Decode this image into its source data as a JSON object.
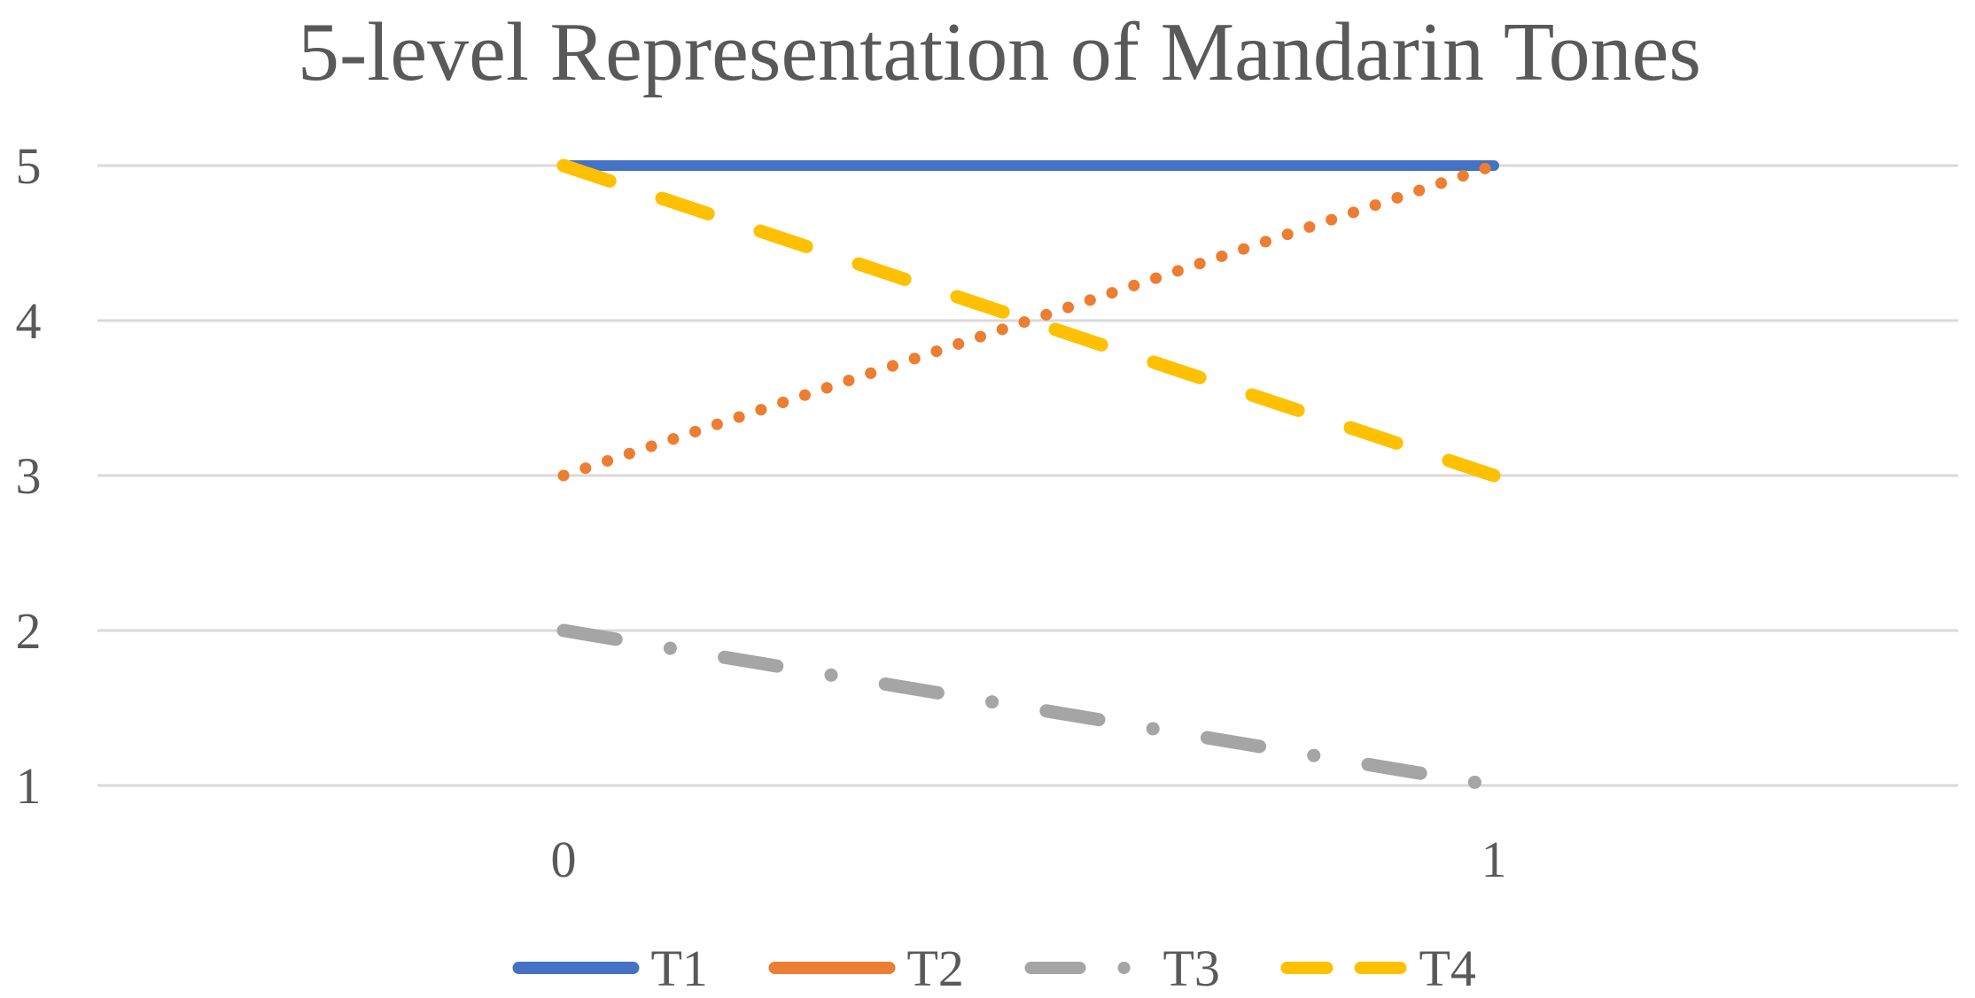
{
  "chart_data": {
    "type": "line",
    "title": "5-level Representation of Mandarin Tones",
    "xlabel": "",
    "ylabel": "",
    "categories": [
      "0",
      "1"
    ],
    "x": [
      0,
      1
    ],
    "ylim": [
      1,
      5
    ],
    "yticks": [
      5,
      4,
      3,
      2,
      1
    ],
    "grid": true,
    "legend_position": "bottom",
    "series": [
      {
        "name": "T1",
        "values": [
          5,
          5
        ],
        "color": "#4472C4",
        "dash": "solid"
      },
      {
        "name": "T2",
        "values": [
          3,
          5
        ],
        "color": "#ED7D31",
        "dash": "dotted"
      },
      {
        "name": "T3",
        "values": [
          2,
          1
        ],
        "color": "#A5A5A5",
        "dash": "dash-dot"
      },
      {
        "name": "T4",
        "values": [
          5,
          3
        ],
        "color": "#FFC000",
        "dash": "dashed"
      }
    ]
  }
}
